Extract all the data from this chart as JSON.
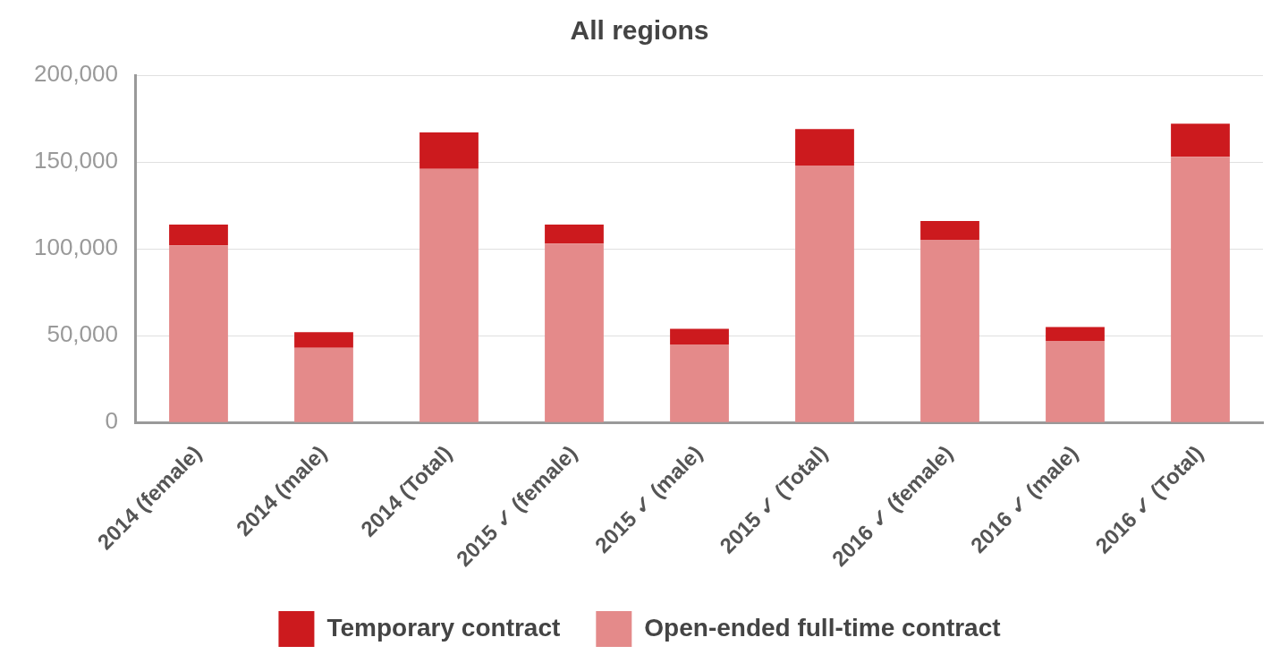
{
  "chart_data": {
    "type": "bar",
    "title": "All regions",
    "stacked": true,
    "categories": [
      "2014 (female)",
      "2014 (male)",
      "2014 (Total)",
      "2015 ✓ (female)",
      "2015 ✓ (male)",
      "2015 ✓ (Total)",
      "2016 ✓ (female)",
      "2016 ✓ (male)",
      "2016 ✓ (Total)"
    ],
    "series": [
      {
        "name": "Open-ended full-time contract",
        "color": "#e48a8a",
        "values": [
          102000,
          43000,
          146000,
          103000,
          45000,
          148000,
          105000,
          47000,
          153000
        ]
      },
      {
        "name": "Temporary contract",
        "color": "#cc1a1e",
        "values": [
          12000,
          9000,
          21000,
          11000,
          9000,
          21000,
          11000,
          8000,
          19000
        ]
      }
    ],
    "ylim": [
      0,
      200000
    ],
    "yticks": [
      {
        "value": 0,
        "label": "0"
      },
      {
        "value": 50000,
        "label": "50,000"
      },
      {
        "value": 100000,
        "label": "100,000"
      },
      {
        "value": 150000,
        "label": "150,000"
      },
      {
        "value": 200000,
        "label": "200,000"
      }
    ],
    "grid": "y",
    "legend": "bottom"
  }
}
